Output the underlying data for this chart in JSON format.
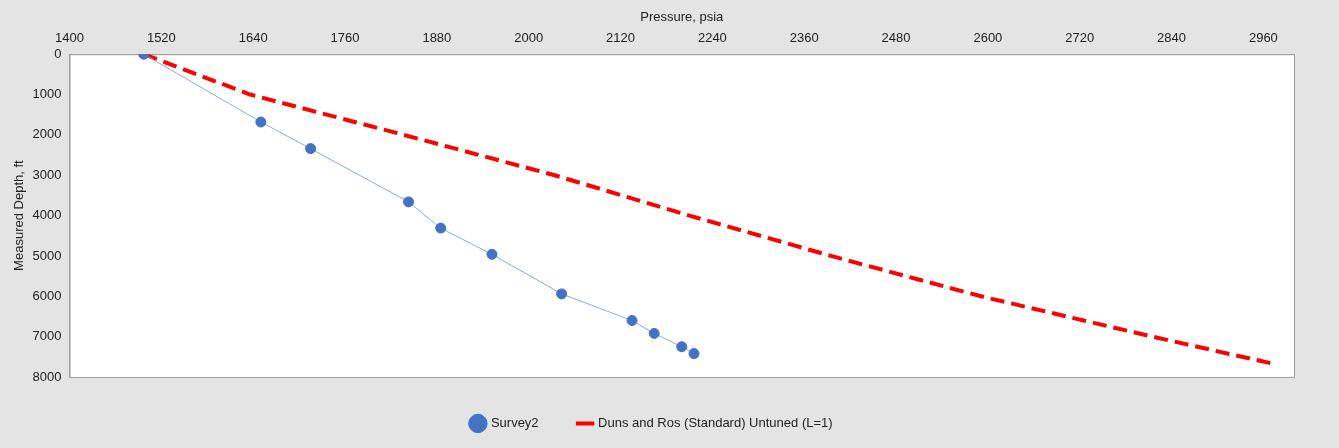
{
  "chart_data": {
    "type": "line",
    "xlabel": "Pressure, psia",
    "ylabel": "Measured Depth, ft",
    "xlim": [
      1400,
      3000
    ],
    "xticks": [
      1400,
      1520,
      1640,
      1760,
      1880,
      2000,
      2120,
      2240,
      2360,
      2480,
      2600,
      2720,
      2840,
      2960
    ],
    "ylim": [
      8000,
      0
    ],
    "yticks": [
      0,
      1000,
      2000,
      3000,
      4000,
      5000,
      6000,
      7000,
      8000
    ],
    "grid": false,
    "legend": "bottom",
    "series": [
      {
        "name": "Survey2",
        "color": "#4472c4",
        "marker": "circle",
        "line_style": "solid",
        "x": [
          1497,
          1650,
          1715,
          1843,
          1885,
          1952,
          2043,
          2135,
          2164,
          2200,
          2216
        ],
        "values": [
          0,
          1680,
          2340,
          3660,
          4310,
          4960,
          5940,
          6600,
          6920,
          7250,
          7420
        ]
      },
      {
        "name": "Duns and Ros (Standard) Untuned (L=1)",
        "color": "#ff0000",
        "marker": "none",
        "line_style": "dashed",
        "x": [
          1497,
          1636,
          1837,
          2034,
          2210,
          2395,
          2591,
          2815,
          2970
        ],
        "values": [
          0,
          1000,
          2000,
          3000,
          4000,
          5000,
          6000,
          7000,
          7660
        ]
      }
    ]
  }
}
